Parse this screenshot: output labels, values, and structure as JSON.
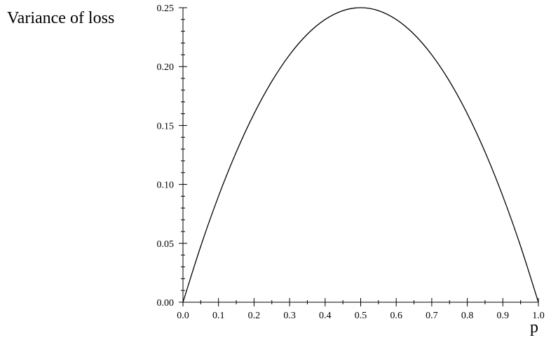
{
  "chart_data": {
    "type": "line",
    "title": "",
    "xlabel": "p",
    "ylabel": "Variance of loss",
    "xlim": [
      0,
      1
    ],
    "ylim": [
      0,
      0.25
    ],
    "x_ticks": [
      "0.0",
      "0.1",
      "0.2",
      "0.3",
      "0.4",
      "0.5",
      "0.6",
      "0.7",
      "0.8",
      "0.9",
      "1.0"
    ],
    "y_ticks": [
      "0.00",
      "0.05",
      "0.10",
      "0.15",
      "0.20",
      "0.25"
    ],
    "x_tick_values": [
      0,
      0.1,
      0.2,
      0.3,
      0.4,
      0.5,
      0.6,
      0.7,
      0.8,
      0.9,
      1.0
    ],
    "y_tick_values": [
      0,
      0.05,
      0.1,
      0.15,
      0.2,
      0.25
    ],
    "grid": false,
    "series": [
      {
        "x": [
          0,
          0.05,
          0.1,
          0.15,
          0.2,
          0.25,
          0.3,
          0.35,
          0.4,
          0.45,
          0.5,
          0.55,
          0.6,
          0.65,
          0.7,
          0.75,
          0.8,
          0.85,
          0.9,
          0.95,
          1.0
        ],
        "y": [
          0,
          0.0475,
          0.09,
          0.1275,
          0.16,
          0.1875,
          0.21,
          0.2275,
          0.24,
          0.2475,
          0.25,
          0.2475,
          0.24,
          0.2275,
          0.21,
          0.1875,
          0.16,
          0.1275,
          0.09,
          0.0475,
          0
        ]
      }
    ]
  }
}
